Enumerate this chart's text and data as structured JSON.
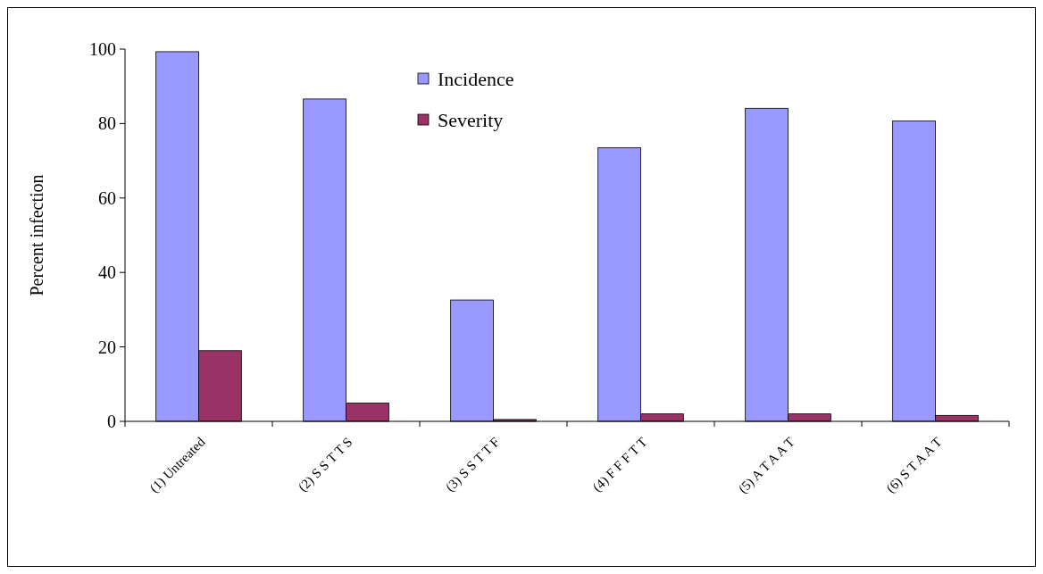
{
  "chart_data": {
    "type": "bar",
    "ylabel": "Percent infection",
    "categories": [
      "(1) Untreated",
      "(2) S S T T S",
      "(3) S S T T F",
      "(4) F F F T T",
      "(5) A T A A T",
      "(6) S T A A T"
    ],
    "series": [
      {
        "name": "Incidence",
        "color": "#9999ff",
        "values": [
          99.3,
          86.6,
          32.6,
          73.5,
          84.1,
          80.7
        ]
      },
      {
        "name": "Severity",
        "color": "#993366",
        "values": [
          19,
          4.9,
          0.5,
          2,
          2,
          1.6
        ]
      }
    ],
    "ylim": [
      0,
      100
    ],
    "yticks": [
      0,
      20,
      40,
      60,
      80,
      100
    ],
    "grid": false,
    "legend": "top"
  }
}
